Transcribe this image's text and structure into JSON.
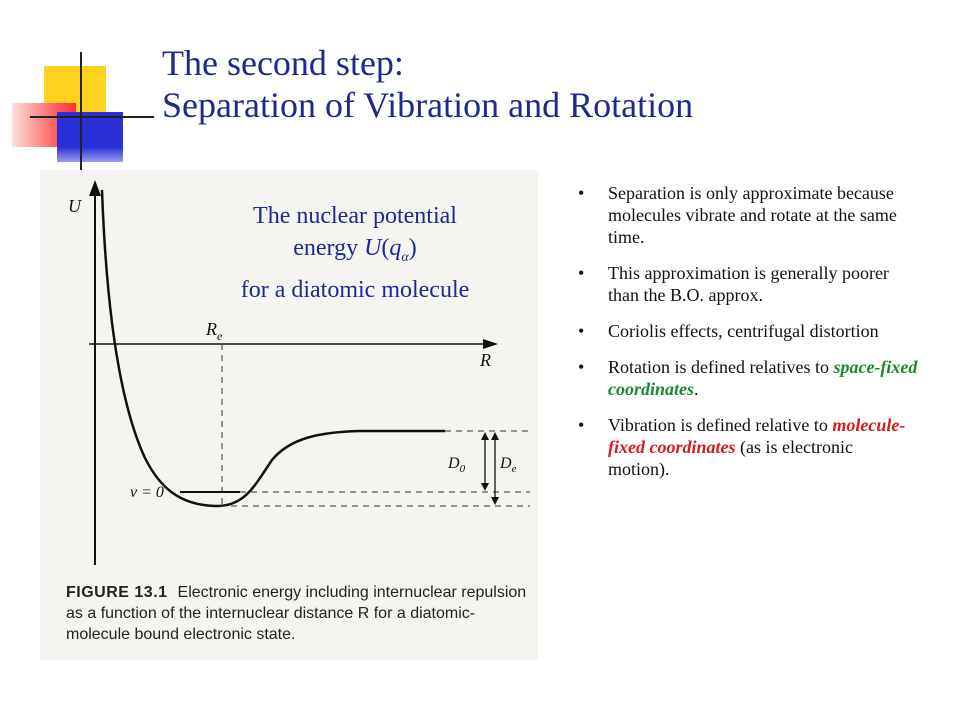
{
  "title": {
    "line1": "The second step:",
    "line2": "Separation of Vibration and Rotation"
  },
  "figure": {
    "overlay": {
      "line1": "The nuclear potential",
      "line2_pre": "energy ",
      "line2_U": "U",
      "line2_open": "(",
      "line2_q": "q",
      "line2_sub": "α",
      "line2_close": ")",
      "line3": "for a diatomic molecule"
    },
    "labels": {
      "y_axis": "U",
      "x_axis": "R",
      "re": "R",
      "re_sub": "e",
      "v0": "v = 0",
      "d0": "D",
      "d0_sub": "0",
      "de": "D",
      "de_sub": "e"
    },
    "caption": {
      "number": "FIGURE 13.1",
      "text": "Electronic energy including internuclear repulsion as a function of the internuclear distance R for a diatomic-molecule bound electronic state."
    }
  },
  "bullets": [
    {
      "text": "Separation is only approximate because molecules vibrate and rotate at the same time."
    },
    {
      "text": "This approximation is generally poorer than the B.O. approx."
    },
    {
      "text": "Coriolis effects, centrifugal distortion"
    },
    {
      "pre": "Rotation is defined relatives to ",
      "emph": "space-fixed coordinates",
      "post": "."
    },
    {
      "pre": "Vibration is defined relative to ",
      "emph": "molecule-fixed coordinates",
      "post": " (as is electronic motion)."
    }
  ],
  "bullet_glyph": "•",
  "colors": {
    "title": "#1b2a8c",
    "green_emphasis": "#1a8a2e",
    "red_emphasis": "#d71a1a",
    "deco_yellow": "#ffd21f",
    "deco_red": "#ff3b3b",
    "deco_blue": "#2b2fd8"
  }
}
